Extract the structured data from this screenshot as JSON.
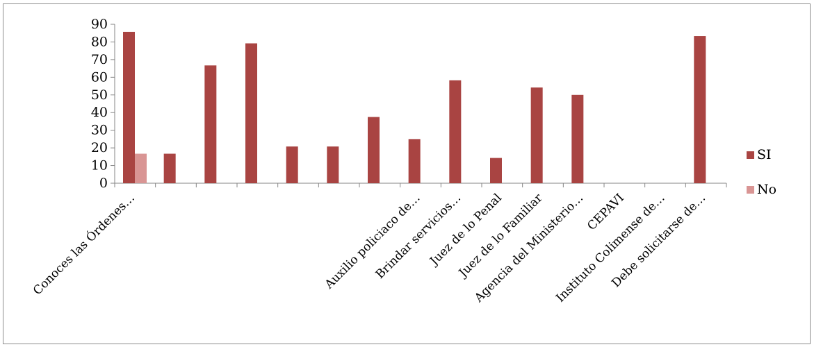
{
  "chart_data": {
    "type": "bar",
    "title": "",
    "xlabel": "",
    "ylabel": "",
    "ylim": [
      0,
      90
    ],
    "yticks": [
      0,
      10,
      20,
      30,
      40,
      50,
      60,
      70,
      80,
      90
    ],
    "grid": false,
    "legend_position": "right",
    "categories": [
      "Conoces las Órdenes…",
      "",
      "",
      "",
      "",
      "",
      "",
      "Auxilio policiaco de…",
      "Brindar servicios…",
      "Juez de lo Penal",
      "Juez de lo Familiar",
      "Agencia del Ministerio…",
      "CEPAVI",
      "Instituto Colimense de…",
      "Debe solicitarse de…"
    ],
    "series": [
      {
        "name": "SI",
        "color": "#a94442",
        "values": [
          85.7,
          16.7,
          66.7,
          79.2,
          20.8,
          20.8,
          37.5,
          25.0,
          58.3,
          14.3,
          54.2,
          50.0,
          0,
          0,
          83.3
        ]
      },
      {
        "name": "No",
        "color": "#d99594",
        "values": [
          16.7,
          0,
          0,
          0,
          0,
          0,
          0,
          0,
          0,
          0,
          0,
          0,
          0,
          0,
          0
        ]
      }
    ]
  }
}
